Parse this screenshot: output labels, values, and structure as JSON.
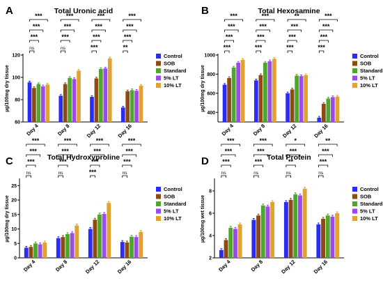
{
  "figure": {
    "panels": [
      "A",
      "B",
      "C",
      "D"
    ],
    "colors": [
      "#2b2bf2",
      "#8b4a17",
      "#4fa62c",
      "#9a4be8",
      "#e0a233"
    ]
  },
  "chart_data": [
    {
      "panel": "A",
      "type": "bar",
      "title": "Total Uronic acid",
      "ylabel": "µg/100mg dry tissue",
      "ylim": [
        60,
        120
      ],
      "yticks": [
        60,
        80,
        100,
        120
      ],
      "categories": [
        "Day 4",
        "Day 8",
        "Day 12",
        "Day 16"
      ],
      "series": [
        {
          "name": "Control",
          "values": [
            95.5,
            83.5,
            82.5,
            73.0
          ]
        },
        {
          "name": "SOB",
          "values": [
            90.5,
            94.0,
            99.0,
            87.5
          ]
        },
        {
          "name": "Standard",
          "values": [
            94.0,
            99.5,
            107.5,
            88.5
          ]
        },
        {
          "name": "5% LT",
          "values": [
            92.0,
            98.5,
            108.0,
            88.0
          ]
        },
        {
          "name": "10% LT",
          "values": [
            93.5,
            106.0,
            117.0,
            92.5
          ]
        }
      ],
      "significance": [
        [
          "ns",
          "ns",
          "***",
          "**"
        ],
        [
          "***",
          "***",
          "***",
          "***"
        ],
        [
          "***",
          "***",
          "***",
          "***"
        ],
        [
          "***",
          "***",
          "***",
          "***"
        ]
      ]
    },
    {
      "panel": "B",
      "type": "bar",
      "title": "Total Hexosamine",
      "ylabel": "µg/100mg dry tissue",
      "ylim": [
        300,
        1000
      ],
      "yticks": [
        400,
        600,
        800,
        1000
      ],
      "categories": [
        "Day 4",
        "Day 8",
        "Day 12",
        "Day 16"
      ],
      "series": [
        {
          "name": "Control",
          "values": [
            690,
            735,
            600,
            345
          ]
        },
        {
          "name": "SOB",
          "values": [
            760,
            790,
            640,
            490
          ]
        },
        {
          "name": "Standard",
          "values": [
            870,
            920,
            785,
            545
          ]
        },
        {
          "name": "5% LT",
          "values": [
            920,
            935,
            780,
            560
          ]
        },
        {
          "name": "10% LT",
          "values": [
            950,
            960,
            790,
            565
          ]
        }
      ],
      "significance": [
        [
          "***",
          "***",
          "***",
          "***"
        ],
        [
          "***",
          "***",
          "***",
          "***"
        ],
        [
          "***",
          "***",
          "***",
          "***"
        ],
        [
          "***",
          "***",
          "**",
          "***"
        ]
      ]
    },
    {
      "panel": "C",
      "type": "bar",
      "title": "Total Hydroxyproline",
      "ylabel": "µg/100mg dry tissue",
      "ylim": [
        0,
        27
      ],
      "yticks": [
        0,
        5,
        10,
        15,
        20,
        25
      ],
      "categories": [
        "Day 4",
        "Day 8",
        "Day 12",
        "Day 16"
      ],
      "series": [
        {
          "name": "Control",
          "values": [
            3.5,
            6.8,
            10.0,
            5.5
          ]
        },
        {
          "name": "SOB",
          "values": [
            3.8,
            7.2,
            13.2,
            5.3
          ]
        },
        {
          "name": "Standard",
          "values": [
            5.0,
            8.2,
            15.0,
            7.3
          ]
        },
        {
          "name": "5% LT",
          "values": [
            4.7,
            8.6,
            15.2,
            7.2
          ]
        },
        {
          "name": "10% LT",
          "values": [
            5.3,
            11.2,
            19.0,
            9.0
          ]
        }
      ],
      "significance": [
        [
          "ns",
          "ns",
          "***",
          "ns"
        ],
        [
          "***",
          "***",
          "***",
          "***"
        ],
        [
          "***",
          "***",
          "***",
          "***"
        ],
        [
          "***",
          "***",
          "***",
          "***"
        ]
      ]
    },
    {
      "panel": "D",
      "type": "bar",
      "title": "Total Protein",
      "ylabel": "µg/100mg wet tissue",
      "ylim": [
        2,
        9
      ],
      "yticks": [
        2,
        4,
        6,
        8
      ],
      "categories": [
        "Day 4",
        "Day 8",
        "Day 12",
        "Day 16"
      ],
      "series": [
        {
          "name": "Control",
          "values": [
            2.7,
            5.4,
            7.0,
            5.0
          ]
        },
        {
          "name": "SOB",
          "values": [
            3.6,
            5.8,
            7.2,
            5.5
          ]
        },
        {
          "name": "Standard",
          "values": [
            4.7,
            6.7,
            7.7,
            5.8
          ]
        },
        {
          "name": "5% LT",
          "values": [
            4.6,
            6.6,
            7.6,
            5.7
          ]
        },
        {
          "name": "10% LT",
          "values": [
            5.0,
            7.0,
            8.2,
            6.0
          ]
        }
      ],
      "significance": [
        [
          "ns",
          "ns",
          "ns",
          "ns"
        ],
        [
          "***",
          "***",
          "**",
          "***"
        ],
        [
          "***",
          "***",
          "***",
          "***"
        ],
        [
          "***",
          "***",
          "*",
          "**"
        ]
      ]
    }
  ]
}
